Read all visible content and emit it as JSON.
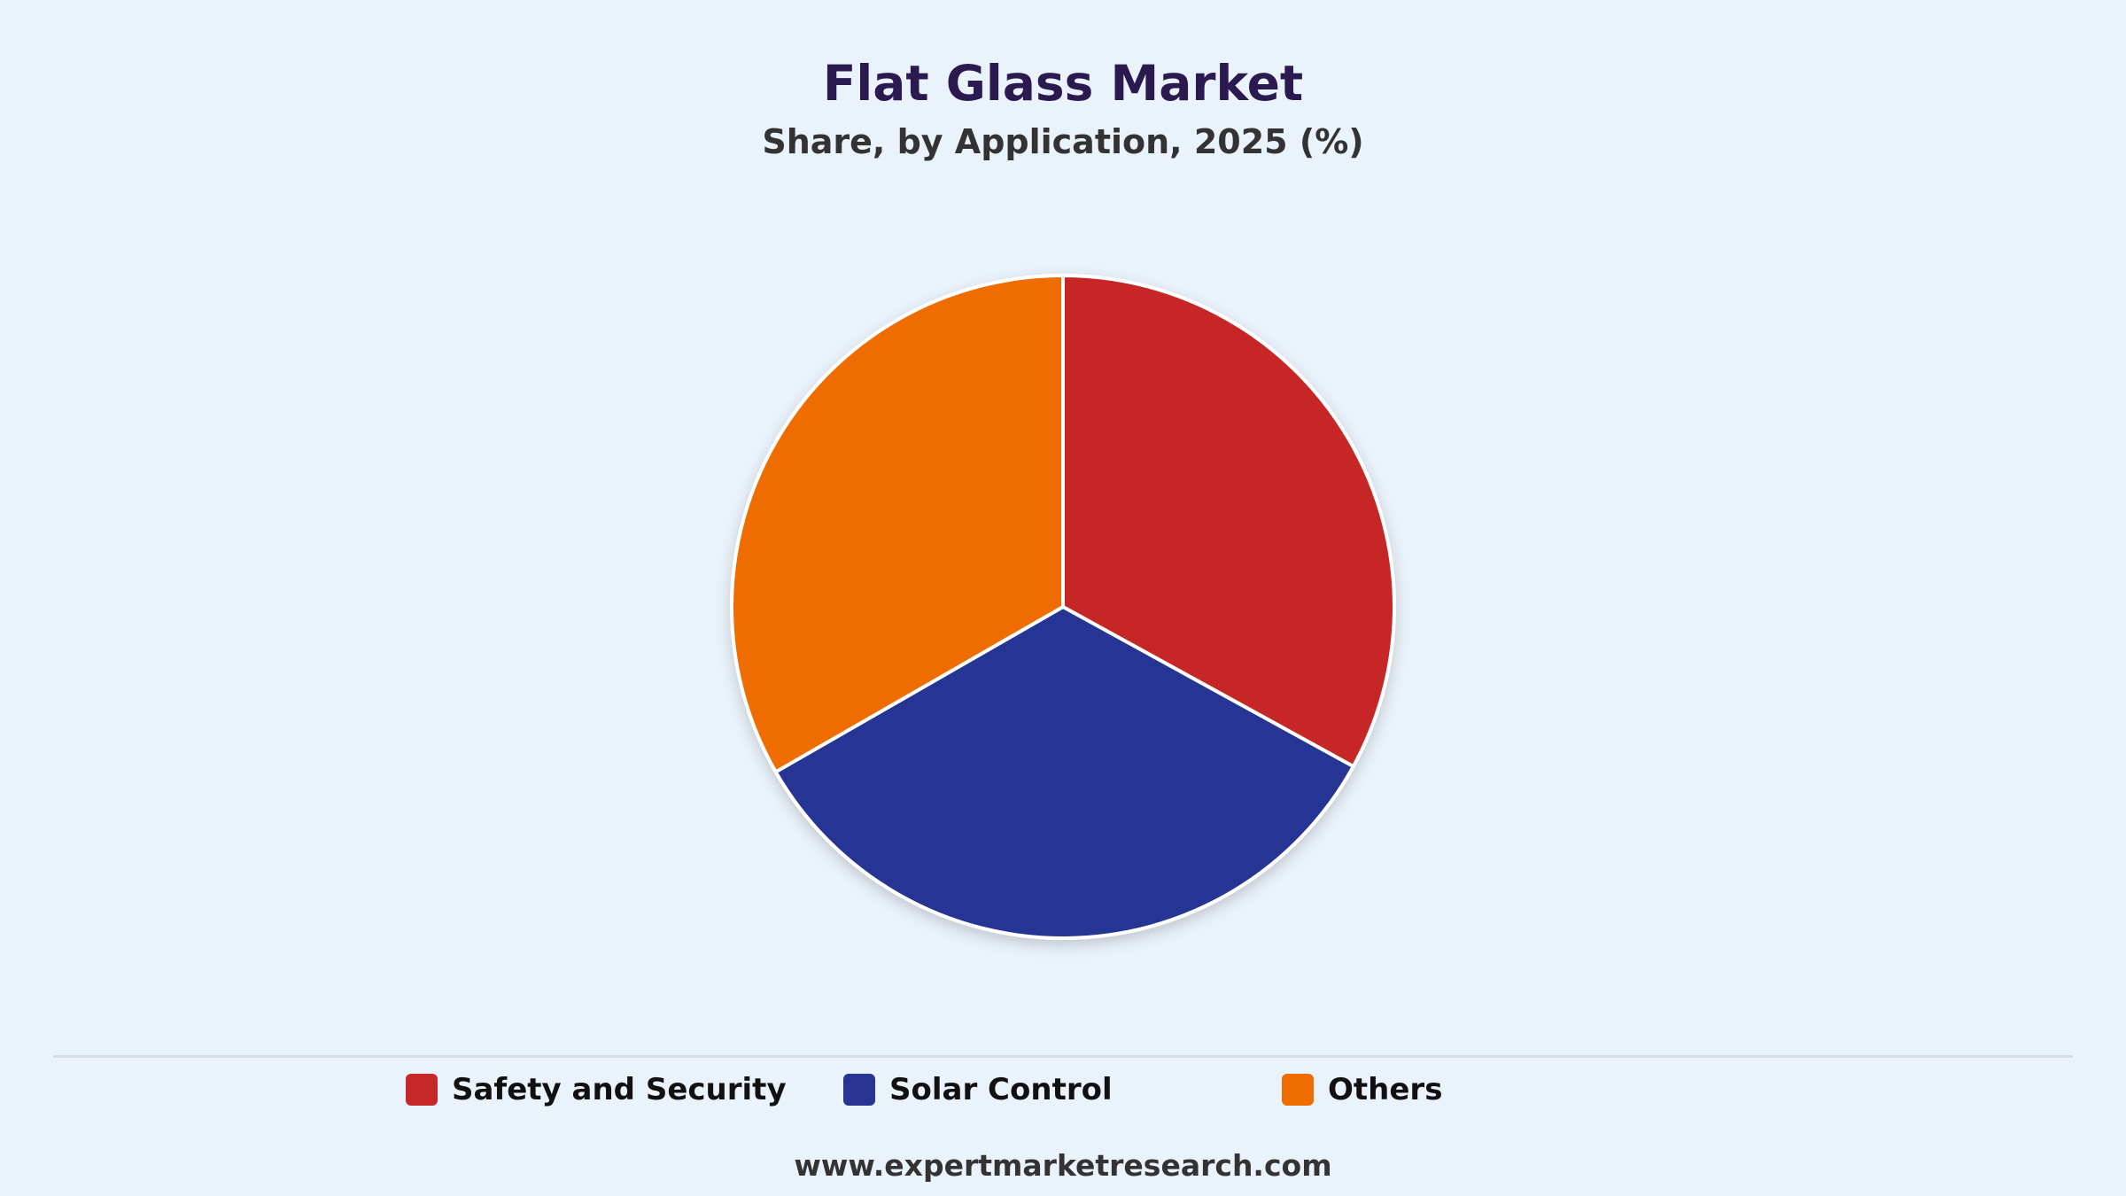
{
  "title": "Flat Glass Market",
  "subtitle": "Share, by Application, 2025 (%)",
  "source": "www.expertmarketresearch.com",
  "chart_data": {
    "type": "pie",
    "title": "Flat Glass Market",
    "subtitle": "Share, by Application, 2025 (%)",
    "categories": [
      "Safety and Security",
      "Solar Control",
      "Others"
    ],
    "values": [
      33.0,
      33.7,
      33.3
    ],
    "colors": [
      "#c62828",
      "#283593",
      "#ef6c00"
    ],
    "legend_position": "bottom"
  }
}
